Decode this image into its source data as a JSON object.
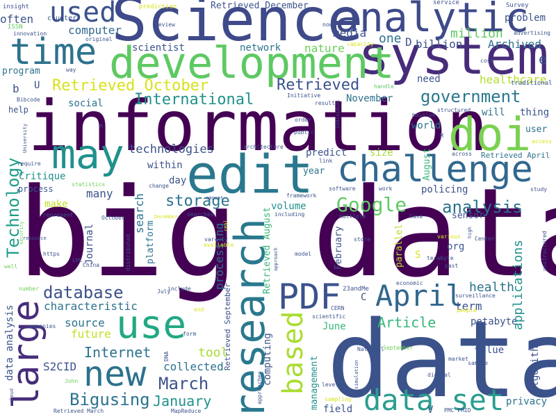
{
  "palette": {
    "dark_purple": "#440154",
    "indigo": "#3b528b",
    "blue": "#31688e",
    "teal": "#21918c",
    "green": "#35b779",
    "lime": "#90d743",
    "yellow": "#d8e219"
  },
  "words": [
    {
      "text": "big data",
      "color": "#440154"
    },
    {
      "text": "data",
      "color": "#3b528b"
    },
    {
      "text": "information",
      "color": "#440154"
    },
    {
      "text": "Science",
      "color": "#3e4a89"
    },
    {
      "text": "system",
      "color": "#472c7a"
    },
    {
      "text": "development",
      "color": "#5ec962"
    },
    {
      "text": "analytic",
      "color": "#3e4a89"
    },
    {
      "text": "edit",
      "color": "#2a788e"
    },
    {
      "text": "challenge",
      "color": "#31688e"
    },
    {
      "text": "doi",
      "color": "#7ad151"
    },
    {
      "text": "time",
      "color": "#2c728e"
    },
    {
      "text": "may",
      "color": "#21918c"
    },
    {
      "text": "used",
      "color": "#3b528b"
    },
    {
      "text": "research",
      "color": "#2a788e"
    },
    {
      "text": "large",
      "color": "#472d7b"
    },
    {
      "text": "use",
      "color": "#22a884"
    },
    {
      "text": "new",
      "color": "#2c728e"
    },
    {
      "text": "PDF",
      "color": "#3b528b"
    },
    {
      "text": "April",
      "color": "#31688e"
    },
    {
      "text": "data set",
      "color": "#2a9d8f"
    },
    {
      "text": "based",
      "color": "#aadc32"
    },
    {
      "text": "Google",
      "color": "#5ec962"
    },
    {
      "text": "government",
      "color": "#2a788e"
    },
    {
      "text": "Retrieved October",
      "color": "#d8e219"
    },
    {
      "text": "Retrieved",
      "color": "#3b528b"
    },
    {
      "text": "International",
      "color": "#21918c"
    },
    {
      "text": "Technology",
      "color": "#1f9e89"
    },
    {
      "text": "Bigusing",
      "color": "#2c728e"
    },
    {
      "text": "January",
      "color": "#21918c"
    },
    {
      "text": "March",
      "color": "#3b528b"
    },
    {
      "text": "database",
      "color": "#3b528b"
    },
    {
      "text": "analysis",
      "color": "#2c728e"
    },
    {
      "text": "storage",
      "color": "#2c728e"
    },
    {
      "text": "technologies",
      "color": "#3b528b"
    },
    {
      "text": "million",
      "color": "#5ec962"
    },
    {
      "text": "computer",
      "color": "#31688e"
    },
    {
      "text": "media",
      "color": "#3b528b"
    },
    {
      "text": "one",
      "color": "#2c728e"
    },
    {
      "text": "billion",
      "color": "#3b528b"
    },
    {
      "text": "Archived",
      "color": "#2c728e"
    },
    {
      "text": "often",
      "color": "#3b528b"
    },
    {
      "text": "scientist",
      "color": "#3b528b"
    },
    {
      "text": "network",
      "color": "#2c728e"
    },
    {
      "text": "nature",
      "color": "#6ece58"
    },
    {
      "text": "D",
      "color": "#3b528b"
    },
    {
      "text": "e",
      "color": "#3b528b"
    },
    {
      "text": "problem",
      "color": "#3b528b"
    },
    {
      "text": "healthcare",
      "color": "#b5de2b"
    },
    {
      "text": "program",
      "color": "#2c728e"
    },
    {
      "text": "b",
      "color": "#3b528b"
    },
    {
      "text": "U",
      "color": "#3b528b"
    },
    {
      "text": "November",
      "color": "#2c728e"
    },
    {
      "text": "need",
      "color": "#3b528b"
    },
    {
      "text": "will",
      "color": "#2c728e"
    },
    {
      "text": "thing",
      "color": "#3b528b"
    },
    {
      "text": "social",
      "color": "#2c728e"
    },
    {
      "text": "help",
      "color": "#3b528b"
    },
    {
      "text": "world",
      "color": "#2c728e"
    },
    {
      "text": "user",
      "color": "#2c728e"
    },
    {
      "text": "size",
      "color": "#a5db36"
    },
    {
      "text": "predict",
      "color": "#3b528b"
    },
    {
      "text": "within",
      "color": "#3b528b"
    },
    {
      "text": "Critique",
      "color": "#21918c"
    },
    {
      "text": "year",
      "color": "#2c728e"
    },
    {
      "text": "August",
      "color": "#35b779"
    },
    {
      "text": "Retrieved April",
      "color": "#2c728e"
    },
    {
      "text": "process",
      "color": "#3b528b"
    },
    {
      "text": "many",
      "color": "#3b528b"
    },
    {
      "text": "day",
      "color": "#3b528b"
    },
    {
      "text": "make",
      "color": "#c2df23"
    },
    {
      "text": "search",
      "color": "#2c728e"
    },
    {
      "text": "volume",
      "color": "#21918c"
    },
    {
      "text": "policing",
      "color": "#3b528b"
    },
    {
      "text": "sensor",
      "color": "#3b528b"
    },
    {
      "text": "org",
      "color": "#3b528b"
    },
    {
      "text": "parallel",
      "color": "#b5de2b"
    },
    {
      "text": "Journal",
      "color": "#3b528b"
    },
    {
      "text": "platform",
      "color": "#2c728e"
    },
    {
      "text": "processing",
      "color": "#2c728e"
    },
    {
      "text": "Retrieved August",
      "color": "#35b779"
    },
    {
      "text": "February",
      "color": "#3b528b"
    },
    {
      "text": "S",
      "color": "#d8e219"
    },
    {
      "text": "term",
      "color": "#3b528b"
    },
    {
      "text": "health",
      "color": "#2c728e"
    },
    {
      "text": "characteristic",
      "color": "#2c728e"
    },
    {
      "text": "data analysis",
      "color": "#3b528b"
    },
    {
      "text": "source",
      "color": "#2c728e"
    },
    {
      "text": "future",
      "color": "#c2df23"
    },
    {
      "text": "Article",
      "color": "#35b779"
    },
    {
      "text": "petabyte",
      "color": "#3b528b"
    },
    {
      "text": "applications",
      "color": "#21918c"
    },
    {
      "text": "algorithm",
      "color": "#3b528b"
    },
    {
      "text": "Internet",
      "color": "#2c728e"
    },
    {
      "text": "tool",
      "color": "#a5db36"
    },
    {
      "text": "collected",
      "color": "#2c728e"
    },
    {
      "text": "S2CID",
      "color": "#3b528b"
    },
    {
      "text": "Retrieved September",
      "color": "#3b528b"
    },
    {
      "text": "computing",
      "color": "#3b528b"
    },
    {
      "text": "management",
      "color": "#21918c"
    },
    {
      "text": "June",
      "color": "#35b779"
    },
    {
      "text": "value",
      "color": "#3b528b"
    },
    {
      "text": "privacy",
      "color": "#2c728e"
    },
    {
      "text": "field",
      "color": "#3b528b"
    },
    {
      "text": "V",
      "color": "#3b528b"
    },
    {
      "text": "C",
      "color": "#3b528b"
    },
    {
      "text": "insight",
      "color": "#3b528b"
    },
    {
      "text": "prediction",
      "color": "#d8e219"
    },
    {
      "text": "Retrieved December",
      "color": "#3b528b"
    },
    {
      "text": "service",
      "color": "#3b528b"
    },
    {
      "text": "Survey",
      "color": "#3b528b"
    },
    {
      "text": "cluster",
      "color": "#3b528b"
    },
    {
      "text": "Review",
      "color": "#3b528b"
    },
    {
      "text": "original",
      "color": "#3b528b"
    },
    {
      "text": "innovation",
      "color": "#3b528b"
    },
    {
      "text": "ISSN",
      "color": "#5ec962"
    },
    {
      "text": "now",
      "color": "#3b528b"
    },
    {
      "text": "capacity",
      "color": "#d8e219"
    },
    {
      "text": "advertising",
      "color": "#3b528b"
    },
    {
      "text": "cost",
      "color": "#3b528b"
    },
    {
      "text": "way",
      "color": "#3b528b"
    },
    {
      "text": "traditional",
      "color": "#3b528b"
    },
    {
      "text": "handle",
      "color": "#5ec962"
    },
    {
      "text": "Initiative",
      "color": "#3b528b"
    },
    {
      "text": "result",
      "color": "#3b528b"
    },
    {
      "text": "Bibcode",
      "color": "#3b528b"
    },
    {
      "text": "individual",
      "color": "#3b528b"
    },
    {
      "text": "massive",
      "color": "#3b528b"
    },
    {
      "text": "structured",
      "color": "#3b528b"
    },
    {
      "text": "University",
      "color": "#3b528b"
    },
    {
      "text": "order",
      "color": "#3b528b"
    },
    {
      "text": "public",
      "color": "#3b528b"
    },
    {
      "text": "M",
      "color": "#3b528b"
    },
    {
      "text": "access",
      "color": "#d8e219"
    },
    {
      "text": "H",
      "color": "#3b528b"
    },
    {
      "text": "architecture",
      "color": "#3b528b"
    },
    {
      "text": "require",
      "color": "#3b528b"
    },
    {
      "text": "link",
      "color": "#3b528b"
    },
    {
      "text": "across",
      "color": "#3b528b"
    },
    {
      "text": "statistics",
      "color": "#6ece58"
    },
    {
      "text": "change",
      "color": "#3b528b"
    },
    {
      "text": "software",
      "color": "#3b528b"
    },
    {
      "text": "work",
      "color": "#3b528b"
    },
    {
      "text": "study",
      "color": "#3b528b"
    },
    {
      "text": "framework",
      "color": "#3b528b"
    },
    {
      "text": "amount",
      "color": "#3b528b"
    },
    {
      "text": "represent",
      "color": "#3b528b"
    },
    {
      "text": "October",
      "color": "#3b528b"
    },
    {
      "text": "December",
      "color": "#d8e219"
    },
    {
      "text": "searches",
      "color": "#3b528b"
    },
    {
      "text": "including",
      "color": "#3b528b"
    },
    {
      "text": "multiple",
      "color": "#3b528b"
    },
    {
      "text": "Case",
      "color": "#3b528b"
    },
    {
      "text": "unstructured",
      "color": "#3b528b"
    },
    {
      "text": "security",
      "color": "#6ece58"
    },
    {
      "text": "real",
      "color": "#d8e219"
    },
    {
      "text": "variety",
      "color": "#3b528b"
    },
    {
      "text": "available",
      "color": "#d8e219"
    },
    {
      "text": "store",
      "color": "#3b528b"
    },
    {
      "text": "high",
      "color": "#3b528b"
    },
    {
      "text": "Center",
      "color": "#3b528b"
    },
    {
      "text": "various",
      "color": "#d8e219"
    },
    {
      "text": "distributed",
      "color": "#3b528b"
    },
    {
      "text": "https",
      "color": "#3b528b"
    },
    {
      "text": "model",
      "color": "#3b528b"
    },
    {
      "text": "approach",
      "color": "#3b528b"
    },
    {
      "text": "terabyte",
      "color": "#3b528b"
    },
    {
      "text": "past",
      "color": "#3b528b"
    },
    {
      "text": "LHC",
      "color": "#3b528b"
    },
    {
      "text": "China",
      "color": "#3b528b"
    },
    {
      "text": "well",
      "color": "#6ece58"
    },
    {
      "text": "number",
      "color": "#6ece58"
    },
    {
      "text": "include",
      "color": "#3b528b"
    },
    {
      "text": "23andMe",
      "color": "#3b528b"
    },
    {
      "text": "economic",
      "color": "#3b528b"
    },
    {
      "text": "surveillance",
      "color": "#3b528b"
    },
    {
      "text": "July",
      "color": "#3b528b"
    },
    {
      "text": "end",
      "color": "#d8e219"
    },
    {
      "text": "CERN",
      "color": "#3b528b"
    },
    {
      "text": "people",
      "color": "#d8e219"
    },
    {
      "text": "scientific",
      "color": "#3b528b"
    },
    {
      "text": "form",
      "color": "#3b528b"
    },
    {
      "text": "companies",
      "color": "#3b528b"
    },
    {
      "text": "DNA",
      "color": "#3b528b"
    },
    {
      "text": "September",
      "color": "#6ece58"
    },
    {
      "text": "market",
      "color": "#3b528b"
    },
    {
      "text": "sample",
      "color": "#3b528b"
    },
    {
      "text": "method",
      "color": "#3b528b"
    },
    {
      "text": "PMC PMID",
      "color": "#3b528b"
    },
    {
      "text": "digital",
      "color": "#3b528b"
    },
    {
      "text": "simulation",
      "color": "#3b528b"
    },
    {
      "text": "National",
      "color": "#3b528b"
    },
    {
      "text": "approaches",
      "color": "#3b528b"
    },
    {
      "text": "level",
      "color": "#3b528b"
    },
    {
      "text": "sampling",
      "color": "#d8e219"
    },
    {
      "text": "MapReduce",
      "color": "#3b528b"
    },
    {
      "text": "Retrieved March",
      "color": "#3b528b"
    },
    {
      "text": "John",
      "color": "#6ece58"
    },
    {
      "text": "cloud",
      "color": "#3b528b"
    },
    {
      "text": "resource",
      "color": "#3b528b"
    }
  ]
}
